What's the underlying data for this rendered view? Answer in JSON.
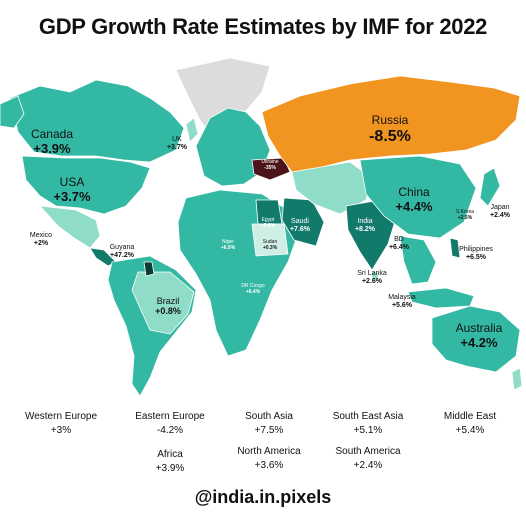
{
  "title": "GDP Growth Rate Estimates by IMF for 2022",
  "footer": "@india.in.pixels",
  "colors": {
    "ocean": "#ffffff",
    "land_dark": "#127a6b",
    "land_mid": "#33b9a3",
    "land_light": "#8fdcc9",
    "land_pale": "#cfeee5",
    "greenland_nodata": "#dcdcdc",
    "russia": "#f29420",
    "ukraine": "#4a1418",
    "guyana": "#0b3b35"
  },
  "countries": {
    "canada": {
      "name": "Canada",
      "value": "+3.9%"
    },
    "usa": {
      "name": "USA",
      "value": "+3.7%"
    },
    "mexico": {
      "name": "Mexico",
      "value": "+2%"
    },
    "guyana": {
      "name": "Guyana",
      "value": "+47.2%"
    },
    "brazil": {
      "name": "Brazil",
      "value": "+0.8%"
    },
    "uk": {
      "name": "UK",
      "value": "+3.7%"
    },
    "russia": {
      "name": "Russia",
      "value": "-8.5%"
    },
    "ukraine": {
      "name": "Ukraine",
      "value": "-35%"
    },
    "china": {
      "name": "China",
      "value": "+4.4%"
    },
    "india": {
      "name": "India",
      "value": "+8.2%"
    },
    "japan": {
      "name": "Japan",
      "value": "+2.4%"
    },
    "skorea": {
      "name": "S.Korea",
      "value": "+2.5%"
    },
    "philippines": {
      "name": "Philippines",
      "value": "+6.5%"
    },
    "bd": {
      "name": "BD",
      "value": "+6.4%"
    },
    "srilanka": {
      "name": "Sri Lanka",
      "value": "+2.6%"
    },
    "malaysia": {
      "name": "Malaysia",
      "value": "+5.6%"
    },
    "australia": {
      "name": "Australia",
      "value": "+4.2%"
    },
    "egypt": {
      "name": "Egypt",
      "value": "+5.9%"
    },
    "saudi": {
      "name": "Saudi",
      "value": "+7.6%"
    },
    "sudan": {
      "name": "Sudan",
      "value": "+0.3%"
    },
    "niger": {
      "name": "Niger",
      "value": "+6.9%"
    },
    "drcongo": {
      "name": "DR Congo",
      "value": "+6.4%"
    }
  },
  "regions": [
    {
      "name": "Western Europe",
      "value": "+3%"
    },
    {
      "name": "Eastern Europe",
      "value": "-4.2%"
    },
    {
      "name": "South Asia",
      "value": "+7.5%"
    },
    {
      "name": "South East Asia",
      "value": "+5.1%"
    },
    {
      "name": "Middle East",
      "value": "+5.4%"
    },
    {
      "name": "Africa",
      "value": "+3.9%"
    },
    {
      "name": "North America",
      "value": "+3.6%"
    },
    {
      "name": "South America",
      "value": "+2.4%"
    }
  ]
}
